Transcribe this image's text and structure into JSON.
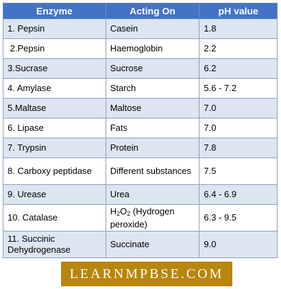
{
  "table": {
    "headers": [
      "Enzyme",
      "Acting On",
      "pH value"
    ],
    "rows": [
      {
        "enzyme": "1. Pepsin",
        "acting_on": "Casein",
        "ph": "1.8"
      },
      {
        "enzyme": " 2.Pepsin",
        "acting_on": "Haemoglobin",
        "ph": "2.2"
      },
      {
        "enzyme": "3.Sucrase",
        "acting_on": "Sucrose",
        "ph": "6.2"
      },
      {
        "enzyme": "4. Amylase",
        "acting_on": "Starch",
        "ph": "5.6 - 7.2"
      },
      {
        "enzyme": "5.Maltase",
        "acting_on": "Maltose",
        "ph": "7.0"
      },
      {
        "enzyme": "6. Lipase",
        "acting_on": "Fats",
        "ph": "7.0"
      },
      {
        "enzyme": "7. Trypsin",
        "acting_on": "Protein",
        "ph": "7.8"
      },
      {
        "enzyme": "8. Carboxy peptidase",
        "acting_on": "Different substances",
        "ph": "7.5"
      },
      {
        "enzyme": "9. Urease",
        "acting_on": "Urea",
        "ph": "6.4 - 6.9"
      },
      {
        "enzyme": "10. Catalase",
        "acting_on_parts": {
          "h": "H",
          "sub1": "2",
          "o": "O",
          "sub2": "2",
          "rest": " (Hydrogen peroxide)"
        },
        "ph": "6.3 - 9.5"
      },
      {
        "enzyme": "11. Succinic Dehydrogenase",
        "acting_on": "Succinate",
        "ph": "9.0"
      }
    ]
  },
  "watermark": "LEARNMPBSE.COM",
  "colors": {
    "header_bg": "#4472c4",
    "row_alt_bg": "#dde5f1",
    "logo_bg": "#b8860f"
  }
}
